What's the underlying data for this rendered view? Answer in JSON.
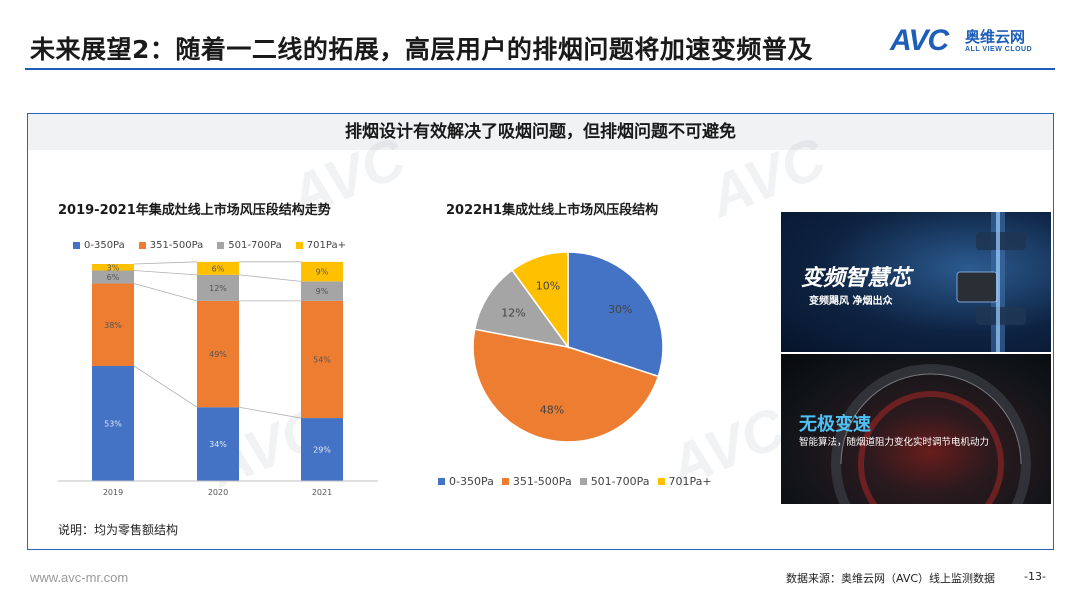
{
  "header": {
    "title": "未来展望2：随着一二线的拓展，高层用户的排烟问题将加速变频普及",
    "logo_text": "AVC",
    "logo_cn": "奥维云网",
    "logo_en": "ALL VIEW CLOUD"
  },
  "panel": {
    "subtitle": "排烟设计有效解决了吸烟问题，但排烟问题不可避免",
    "note": "说明：均为零售额结构"
  },
  "colors": {
    "s1": "#4472c4",
    "s2": "#ed7d31",
    "s3": "#a5a5a5",
    "s4": "#ffc000",
    "accent": "#1d5fb8"
  },
  "chart_data": [
    {
      "type": "bar",
      "stacked": true,
      "normalized": true,
      "title": "2019-2021年集成灶线上市场风压段结构走势",
      "categories": [
        "2019",
        "2020",
        "2021"
      ],
      "series": [
        {
          "name": "0-350Pa",
          "values": [
            53,
            34,
            29
          ],
          "labels": [
            "53%",
            "34%",
            "29%"
          ]
        },
        {
          "name": "351-500Pa",
          "values": [
            38,
            49,
            54
          ],
          "labels": [
            "38%",
            "49%",
            "54%"
          ]
        },
        {
          "name": "501-700Pa",
          "values": [
            6,
            12,
            9
          ],
          "labels": [
            "6%",
            "12%",
            "9%"
          ]
        },
        {
          "name": "701Pa+",
          "values": [
            3,
            6,
            9
          ],
          "labels": [
            "3%",
            "6%",
            "9%"
          ]
        }
      ],
      "legend_position": "top",
      "ylim": [
        0,
        100
      ]
    },
    {
      "type": "pie",
      "title": "2022H1集成灶线上市场风压段结构",
      "slices": [
        {
          "name": "0-350Pa",
          "value": 30,
          "label": "30%"
        },
        {
          "name": "351-500Pa",
          "value": 48,
          "label": "48%"
        },
        {
          "name": "501-700Pa",
          "value": 12,
          "label": "12%"
        },
        {
          "name": "701Pa+",
          "value": 10,
          "label": "10%"
        }
      ],
      "legend_position": "bottom"
    }
  ],
  "images": {
    "top": {
      "heading": "变频智慧芯",
      "sub": "变频飓风 净烟出众"
    },
    "bottom": {
      "heading": "无极变速",
      "sub": "智能算法，随烟道阻力变化实时调节电机动力"
    }
  },
  "footer": {
    "url": "www.avc-mr.com",
    "source": "数据来源：奥维云网（AVC）线上监测数据",
    "page": "-13-"
  }
}
